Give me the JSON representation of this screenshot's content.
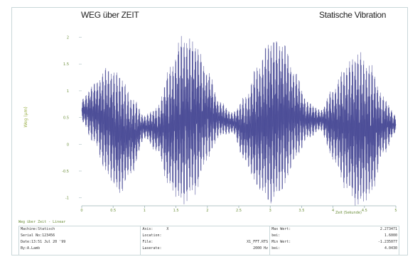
{
  "header": {
    "title_left": "WEG über ZEIT",
    "title_right": "Statische Vibration"
  },
  "caption": "Weg über Zeit - Linear",
  "info": {
    "col1": [
      "Machine:Statisch",
      "Serial No:123456",
      "Date:13:51 Jul 20 '99",
      "By:A.Lamb"
    ],
    "col2": [
      {
        "k": "Axis:",
        "v": "X"
      },
      {
        "k": "Location:",
        "v": ""
      },
      {
        "k": "File:",
        "v": "X1_FFT.RTS"
      },
      {
        "k": "Laserate:",
        "v": "2000 Hz"
      }
    ],
    "col3": [
      {
        "k": "Max Wert:",
        "v": "2.273471"
      },
      {
        "k": "bei:",
        "v": "1.6000"
      },
      {
        "k": "Min Wert:",
        "v": "-1.235077"
      },
      {
        "k": "bei:",
        "v": "4.0430"
      }
    ]
  },
  "chart_data": {
    "type": "line",
    "title": "WEG über ZEIT",
    "subtitle": "Statische Vibration",
    "xlabel": "Zeit (Sekunde)",
    "ylabel": "Weg (µm)",
    "xlim": [
      0,
      5
    ],
    "ylim": [
      -1.15,
      2.1
    ],
    "x_ticks": [
      "0",
      "0.5",
      "1",
      "1.5",
      "2",
      "2.5",
      "3",
      "3.5",
      "4",
      "4.5",
      "5"
    ],
    "y_ticks": [
      {
        "v": 2,
        "label": "2"
      },
      {
        "v": 1.5,
        "label": "1.5"
      },
      {
        "v": 1,
        "label": "1"
      },
      {
        "v": 0.5,
        "label": "0.5"
      },
      {
        "v": 0,
        "label": "0"
      },
      {
        "v": -0.5,
        "label": "-0.5"
      },
      {
        "v": -1,
        "label": "-1"
      }
    ],
    "grid": false,
    "series": [
      {
        "color": "#3e3f8f",
        "baseline": 0.5,
        "beat_period_s": 1.185,
        "upper_envelope": [
          0.85,
          1.15,
          1.45,
          1.35,
          0.9,
          0.55,
          0.7,
          1.45,
          2.05,
          1.95,
          1.4,
          0.8,
          0.6,
          0.9,
          1.5,
          2.0,
          1.95,
          1.35,
          0.8,
          0.65,
          1.05,
          1.5,
          1.75,
          1.5,
          0.9,
          0.55
        ],
        "lower_envelope": [
          0.4,
          0.0,
          -0.6,
          -0.95,
          -0.55,
          0.1,
          -0.15,
          -0.85,
          -1.15,
          -0.95,
          -0.3,
          0.15,
          0.2,
          -0.35,
          -0.85,
          -1.15,
          -0.9,
          -0.3,
          0.1,
          0.25,
          -0.3,
          -0.85,
          -1.2,
          -1.0,
          -0.2,
          0.2
        ],
        "max": 2.273471,
        "max_at": 1.6,
        "min": -1.235077,
        "min_at": 4.043
      }
    ]
  }
}
